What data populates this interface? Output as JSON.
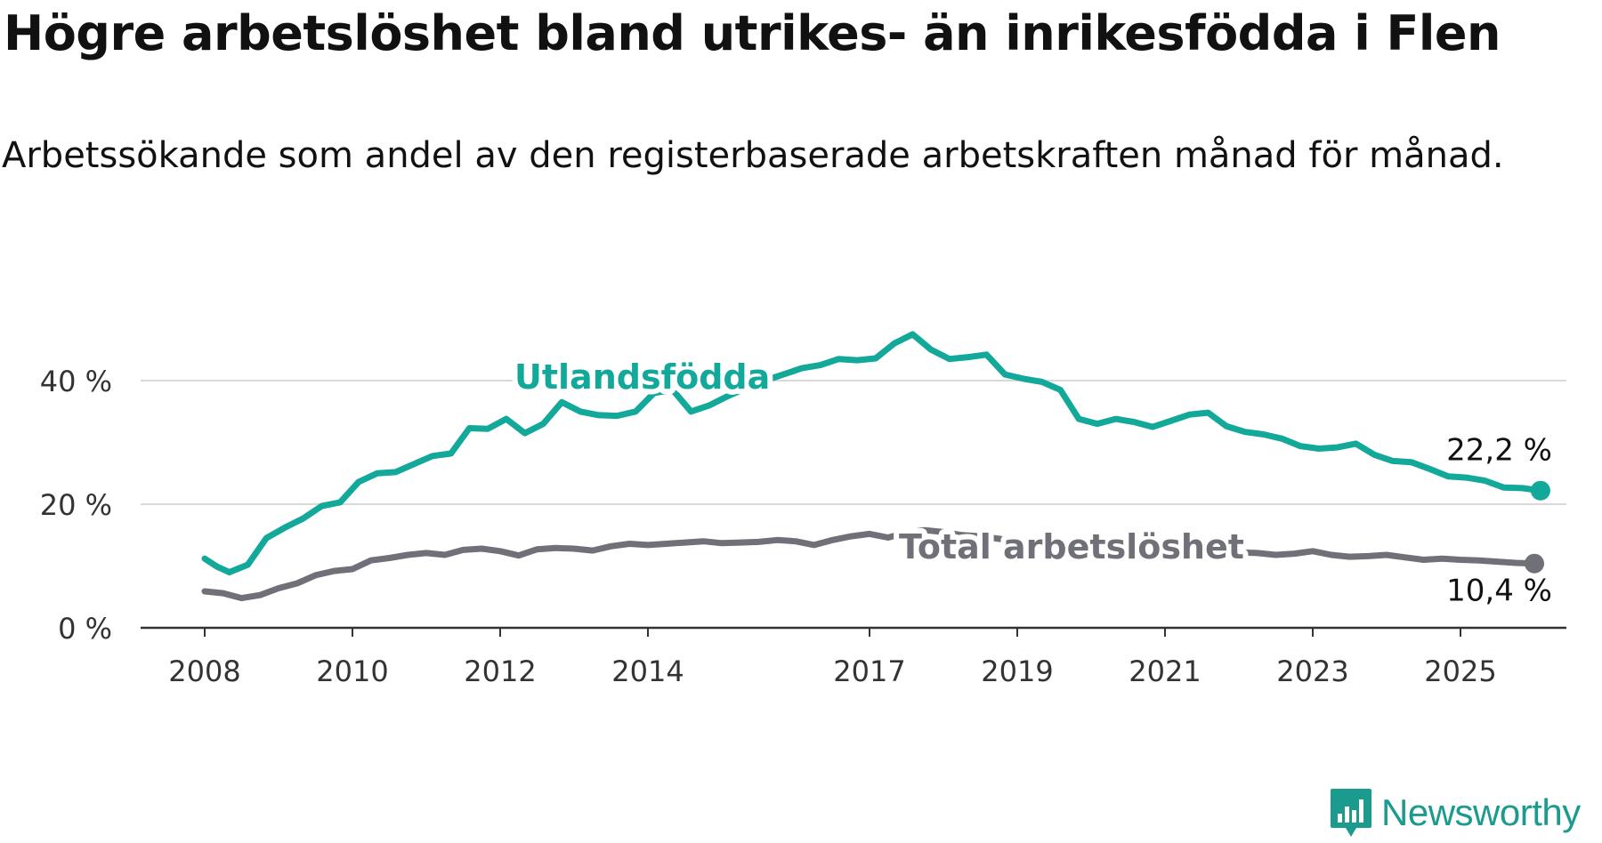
{
  "chart_data": {
    "type": "line",
    "title": "Högre arbetslöshet bland utrikes- än inrikesfödda i Flen",
    "subtitle": "Arbetssökande som andel av den registerbaserade arbetskraften månad för månad.",
    "xlabel": "",
    "ylabel": "",
    "x_ticks": [
      "2008",
      "2010",
      "2012",
      "2014",
      "2017",
      "2019",
      "2021",
      "2023",
      "2025"
    ],
    "y_ticks": [
      "0 %",
      "20 %",
      "40 %"
    ],
    "ylim": [
      0,
      50
    ],
    "grid": "horizontal",
    "series": [
      {
        "name": "Utlandsfödda",
        "color": "#12a89a",
        "end_label": "22,2 %",
        "points": [
          [
            "2008-01",
            11.2
          ],
          [
            "2008-03",
            9.9
          ],
          [
            "2008-05",
            9.0
          ],
          [
            "2008-08",
            10.2
          ],
          [
            "2008-11",
            14.5
          ],
          [
            "2009-02",
            16.2
          ],
          [
            "2009-05",
            17.7
          ],
          [
            "2009-08",
            19.7
          ],
          [
            "2009-11",
            20.3
          ],
          [
            "2010-02",
            23.6
          ],
          [
            "2010-05",
            25.0
          ],
          [
            "2010-08",
            25.2
          ],
          [
            "2010-11",
            26.5
          ],
          [
            "2011-02",
            27.8
          ],
          [
            "2011-05",
            28.2
          ],
          [
            "2011-08",
            32.3
          ],
          [
            "2011-11",
            32.2
          ],
          [
            "2012-02",
            33.8
          ],
          [
            "2012-05",
            31.5
          ],
          [
            "2012-08",
            33.0
          ],
          [
            "2012-11",
            36.5
          ],
          [
            "2013-02",
            35.0
          ],
          [
            "2013-05",
            34.4
          ],
          [
            "2013-08",
            34.3
          ],
          [
            "2013-11",
            35.0
          ],
          [
            "2014-02",
            38.0
          ],
          [
            "2014-05",
            38.5
          ],
          [
            "2014-08",
            35.0
          ],
          [
            "2014-11",
            36.0
          ],
          [
            "2015-02",
            37.5
          ],
          [
            "2015-05",
            38.8
          ],
          [
            "2015-08",
            40.0
          ],
          [
            "2015-11",
            41.0
          ],
          [
            "2016-02",
            42.0
          ],
          [
            "2016-05",
            42.5
          ],
          [
            "2016-08",
            43.5
          ],
          [
            "2016-11",
            43.3
          ],
          [
            "2017-02",
            43.6
          ],
          [
            "2017-05",
            46.0
          ],
          [
            "2017-08",
            47.5
          ],
          [
            "2017-11",
            45.0
          ],
          [
            "2018-02",
            43.5
          ],
          [
            "2018-05",
            43.8
          ],
          [
            "2018-08",
            44.2
          ],
          [
            "2018-11",
            41.0
          ],
          [
            "2019-02",
            40.3
          ],
          [
            "2019-05",
            39.8
          ],
          [
            "2019-08",
            38.5
          ],
          [
            "2019-11",
            33.8
          ],
          [
            "2020-02",
            33.0
          ],
          [
            "2020-05",
            33.8
          ],
          [
            "2020-08",
            33.3
          ],
          [
            "2020-11",
            32.5
          ],
          [
            "2021-02",
            33.5
          ],
          [
            "2021-05",
            34.5
          ],
          [
            "2021-08",
            34.8
          ],
          [
            "2021-11",
            32.6
          ],
          [
            "2022-02",
            31.7
          ],
          [
            "2022-05",
            31.3
          ],
          [
            "2022-08",
            30.6
          ],
          [
            "2022-11",
            29.4
          ],
          [
            "2023-02",
            29.0
          ],
          [
            "2023-05",
            29.2
          ],
          [
            "2023-08",
            29.8
          ],
          [
            "2023-11",
            28.0
          ],
          [
            "2024-02",
            27.0
          ],
          [
            "2024-05",
            26.8
          ],
          [
            "2024-08",
            25.7
          ],
          [
            "2024-11",
            24.5
          ],
          [
            "2025-02",
            24.3
          ],
          [
            "2025-05",
            23.8
          ],
          [
            "2025-08",
            22.7
          ],
          [
            "2025-11",
            22.6
          ],
          [
            "2026-02",
            22.2
          ]
        ]
      },
      {
        "name": "Total arbetslöshet",
        "color": "#707078",
        "end_label": "10,4 %",
        "points": [
          [
            "2008-01",
            5.9
          ],
          [
            "2008-04",
            5.6
          ],
          [
            "2008-07",
            4.8
          ],
          [
            "2008-10",
            5.3
          ],
          [
            "2009-01",
            6.4
          ],
          [
            "2009-04",
            7.2
          ],
          [
            "2009-07",
            8.5
          ],
          [
            "2009-10",
            9.2
          ],
          [
            "2010-01",
            9.5
          ],
          [
            "2010-04",
            10.9
          ],
          [
            "2010-07",
            11.3
          ],
          [
            "2010-10",
            11.8
          ],
          [
            "2011-01",
            12.1
          ],
          [
            "2011-04",
            11.8
          ],
          [
            "2011-07",
            12.6
          ],
          [
            "2011-10",
            12.8
          ],
          [
            "2012-01",
            12.4
          ],
          [
            "2012-04",
            11.7
          ],
          [
            "2012-07",
            12.7
          ],
          [
            "2012-10",
            12.9
          ],
          [
            "2013-01",
            12.8
          ],
          [
            "2013-04",
            12.5
          ],
          [
            "2013-07",
            13.2
          ],
          [
            "2013-10",
            13.6
          ],
          [
            "2014-01",
            13.4
          ],
          [
            "2014-04",
            13.6
          ],
          [
            "2014-07",
            13.8
          ],
          [
            "2014-10",
            14.0
          ],
          [
            "2015-01",
            13.7
          ],
          [
            "2015-04",
            13.8
          ],
          [
            "2015-07",
            13.9
          ],
          [
            "2015-10",
            14.2
          ],
          [
            "2016-01",
            14.0
          ],
          [
            "2016-04",
            13.4
          ],
          [
            "2016-07",
            14.2
          ],
          [
            "2016-10",
            14.8
          ],
          [
            "2017-01",
            15.2
          ],
          [
            "2017-04",
            14.6
          ],
          [
            "2017-07",
            15.4
          ],
          [
            "2017-10",
            15.8
          ],
          [
            "2018-01",
            15.5
          ],
          [
            "2018-04",
            15.0
          ],
          [
            "2018-07",
            14.8
          ],
          [
            "2018-10",
            14.4
          ],
          [
            "2019-01",
            14.0
          ],
          [
            "2019-04",
            13.6
          ],
          [
            "2019-07",
            13.3
          ],
          [
            "2019-10",
            13.0
          ],
          [
            "2020-01",
            12.8
          ],
          [
            "2020-04",
            12.5
          ],
          [
            "2020-07",
            12.4
          ],
          [
            "2020-10",
            12.3
          ],
          [
            "2021-01",
            12.5
          ],
          [
            "2021-04",
            12.6
          ],
          [
            "2021-07",
            12.5
          ],
          [
            "2021-10",
            12.3
          ],
          [
            "2022-01",
            12.2
          ],
          [
            "2022-04",
            12.1
          ],
          [
            "2022-07",
            11.8
          ],
          [
            "2022-10",
            12.0
          ],
          [
            "2023-01",
            12.4
          ],
          [
            "2023-04",
            11.8
          ],
          [
            "2023-07",
            11.5
          ],
          [
            "2023-10",
            11.6
          ],
          [
            "2024-01",
            11.8
          ],
          [
            "2024-04",
            11.4
          ],
          [
            "2024-07",
            11.0
          ],
          [
            "2024-10",
            11.2
          ],
          [
            "2025-01",
            11.0
          ],
          [
            "2025-04",
            10.9
          ],
          [
            "2025-07",
            10.7
          ],
          [
            "2025-10",
            10.5
          ],
          [
            "2026-01",
            10.4
          ]
        ]
      }
    ]
  },
  "brand": {
    "name": "Newsworthy",
    "icon": "bar-chart-speech-bubble-icon",
    "color": "#1a9b8d"
  }
}
